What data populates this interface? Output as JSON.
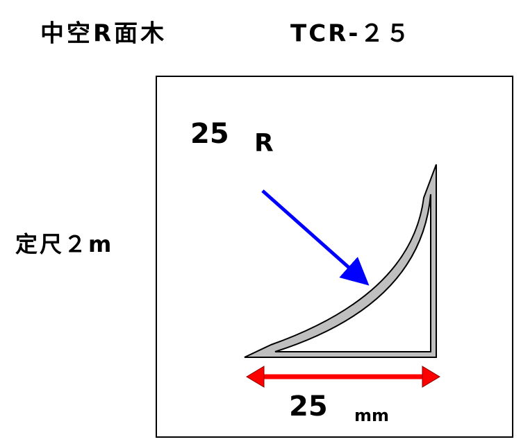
{
  "header": {
    "title": "中空R面木",
    "model": "TCR-２５"
  },
  "side_label": "定尺２m",
  "figure": {
    "radius_value": "25",
    "radius_unit": "R",
    "width_value": "25",
    "width_unit": "mm"
  }
}
